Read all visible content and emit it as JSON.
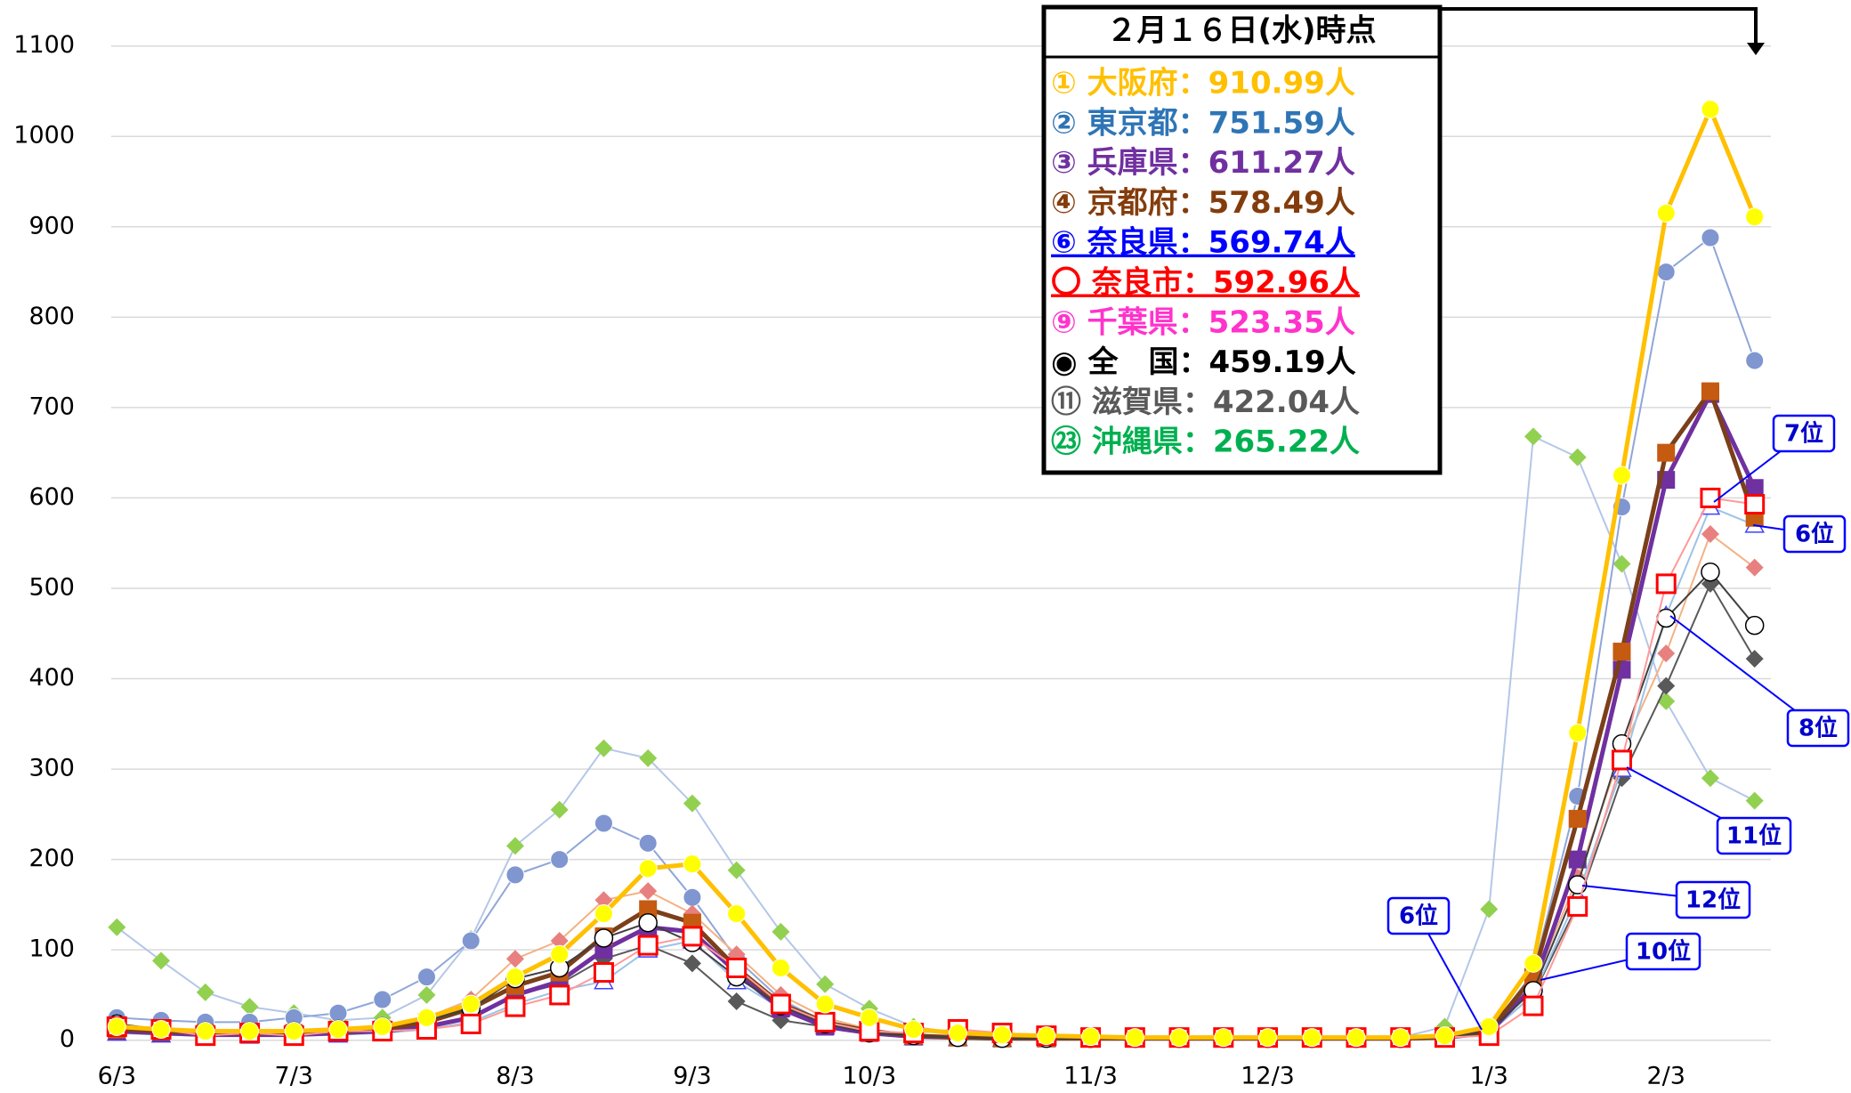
{
  "chart_data": {
    "type": "line",
    "categories": [
      "6/3",
      null,
      null,
      null,
      "7/3",
      null,
      null,
      null,
      null,
      "8/3",
      null,
      null,
      null,
      "9/3",
      null,
      null,
      null,
      "10/3",
      null,
      null,
      null,
      null,
      "11/3",
      null,
      null,
      null,
      "12/3",
      null,
      null,
      null,
      null,
      "1/3",
      null,
      null,
      null,
      "2/3",
      null,
      null
    ],
    "ylim": [
      0,
      1100
    ],
    "yticks": [
      0,
      100,
      200,
      300,
      400,
      500,
      600,
      700,
      800,
      900,
      1000,
      1100
    ],
    "grid": true,
    "legend_title": "２月１６日(水)時点",
    "series": [
      {
        "name": "㉓ 沖縄県：265.22人",
        "color": "#b4c7e7",
        "marker_color": "#92d050",
        "legend_color": "#00b050",
        "marker": "diamond",
        "line_width": 2,
        "values": [
          125,
          88,
          53,
          37,
          30,
          22,
          25,
          50,
          112,
          215,
          255,
          323,
          312,
          262,
          188,
          120,
          62,
          35,
          15,
          8,
          6,
          5,
          4,
          3,
          3,
          3,
          3,
          3,
          3,
          3,
          15,
          145,
          668,
          645,
          527,
          375,
          290,
          265
        ]
      },
      {
        "name": "② 東京都：751.59人",
        "color": "#8fa6d8",
        "marker_color": "#7f96d0",
        "legend_color": "#2e75b6",
        "marker": "circle",
        "line_width": 2,
        "values": [
          25,
          22,
          20,
          20,
          25,
          30,
          45,
          70,
          110,
          183,
          200,
          240,
          218,
          158,
          90,
          45,
          20,
          10,
          5,
          3,
          2,
          2,
          2,
          2,
          2,
          2,
          2,
          2,
          2,
          2,
          3,
          10,
          75,
          270,
          590,
          850,
          888,
          752
        ]
      },
      {
        "name": "⑪ 滋賀県：422.04人",
        "color": "#595959",
        "marker_color": "#595959",
        "legend_color": "#595959",
        "marker": "diamond",
        "line_width": 2,
        "values": [
          10,
          8,
          6,
          6,
          6,
          8,
          10,
          15,
          25,
          50,
          62,
          90,
          105,
          85,
          43,
          22,
          15,
          8,
          4,
          3,
          2,
          2,
          2,
          2,
          2,
          2,
          2,
          2,
          2,
          2,
          3,
          8,
          50,
          150,
          290,
          392,
          505,
          422
        ]
      },
      {
        "name": "⑨ 千葉県：523.35人",
        "color": "#f4b183",
        "marker_color": "#e88080",
        "legend_color": "#ff33cc",
        "marker": "diamond",
        "line_width": 2,
        "values": [
          12,
          10,
          8,
          8,
          8,
          10,
          15,
          25,
          45,
          90,
          110,
          155,
          165,
          140,
          95,
          50,
          25,
          12,
          6,
          4,
          3,
          3,
          3,
          3,
          3,
          3,
          3,
          3,
          3,
          3,
          3,
          10,
          60,
          180,
          320,
          428,
          560,
          523
        ]
      },
      {
        "name": "⑥ 奈良県：569.74人",
        "color": "#9dc3e6",
        "marker_color": "#4040ff",
        "legend_color": "#0000ff",
        "marker": "triangle",
        "underline": true,
        "line_width": 2,
        "values": [
          8,
          6,
          5,
          5,
          5,
          6,
          8,
          12,
          20,
          40,
          55,
          65,
          100,
          110,
          65,
          35,
          15,
          8,
          3,
          2,
          1,
          1,
          1,
          1,
          1,
          1,
          1,
          1,
          1,
          1,
          2,
          8,
          50,
          160,
          300,
          470,
          590,
          570
        ]
      },
      {
        "name": "③ 兵庫県：611.27人",
        "color": "#7030a0",
        "marker_color": "#7030a0",
        "legend_color": "#7030a0",
        "marker": "square",
        "line_width": 5,
        "values": [
          10,
          8,
          6,
          6,
          6,
          8,
          10,
          15,
          25,
          50,
          65,
          100,
          125,
          120,
          75,
          35,
          15,
          8,
          4,
          3,
          2,
          2,
          2,
          2,
          2,
          2,
          2,
          2,
          2,
          2,
          3,
          8,
          60,
          200,
          410,
          620,
          715,
          611
        ]
      },
      {
        "name": "④ 京都府：578.49人",
        "color": "#7b3f1a",
        "marker_color": "#c55a11",
        "legend_color": "#843c0c",
        "marker": "square",
        "line_width": 5,
        "values": [
          12,
          10,
          8,
          8,
          8,
          10,
          12,
          20,
          35,
          60,
          75,
          115,
          145,
          130,
          80,
          40,
          20,
          10,
          5,
          3,
          2,
          2,
          2,
          2,
          2,
          2,
          2,
          2,
          2,
          2,
          3,
          10,
          70,
          245,
          430,
          650,
          718,
          578
        ]
      },
      {
        "name": "◉ 全　国：459.19人",
        "color": "#404040",
        "marker_color": "#000000",
        "legend_color": "#000000",
        "marker": "open-circle",
        "line_width": 2,
        "values": [
          18,
          12,
          10,
          10,
          10,
          12,
          15,
          22,
          35,
          68,
          80,
          113,
          130,
          108,
          70,
          38,
          18,
          8,
          5,
          3,
          2,
          2,
          2,
          2,
          2,
          2,
          2,
          2,
          2,
          2,
          3,
          10,
          55,
          172,
          328,
          467,
          518,
          459
        ]
      },
      {
        "name": "〇 奈良市：592.96人",
        "color": "#ff9999",
        "marker_color": "#ff0000",
        "legend_color": "#ff0000",
        "marker": "open-square",
        "underline": true,
        "line_width": 2,
        "values": [
          15,
          12,
          5,
          8,
          5,
          10,
          10,
          12,
          18,
          37,
          50,
          75,
          105,
          115,
          80,
          40,
          20,
          10,
          8,
          12,
          8,
          5,
          3,
          3,
          3,
          3,
          3,
          3,
          3,
          3,
          3,
          5,
          38,
          148,
          310,
          505,
          600,
          593
        ]
      },
      {
        "name": "① 大阪府：910.99人",
        "color": "#ffc000",
        "marker_color": "#ffff00",
        "legend_color": "#ffc000",
        "marker": "circle",
        "line_width": 5,
        "values": [
          15,
          12,
          10,
          10,
          10,
          12,
          15,
          25,
          40,
          70,
          95,
          140,
          190,
          195,
          140,
          80,
          40,
          25,
          12,
          8,
          6,
          5,
          4,
          3,
          3,
          3,
          3,
          3,
          3,
          3,
          5,
          15,
          85,
          340,
          625,
          915,
          1030,
          911
        ]
      }
    ],
    "legend_order": [
      9,
      1,
      5,
      6,
      4,
      8,
      3,
      7,
      2,
      0
    ],
    "annotations": [
      {
        "text": "7位"
      },
      {
        "text": "6位"
      },
      {
        "text": "8位"
      },
      {
        "text": "11位"
      },
      {
        "text": "12位"
      },
      {
        "text": "10位"
      },
      {
        "text": "6位"
      }
    ]
  }
}
